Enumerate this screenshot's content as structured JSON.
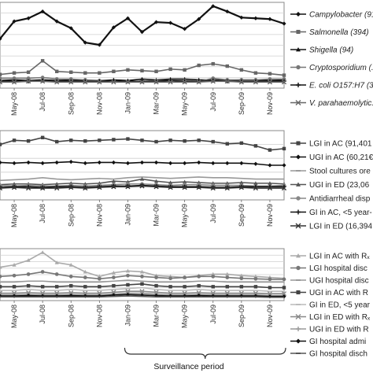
{
  "chart_data": [
    {
      "type": "line",
      "x": [
        "Apr-08",
        "May-08",
        "Jun-08",
        "Jul-08",
        "Aug-08",
        "Sep-08",
        "Oct-08",
        "Nov-08",
        "Dec-08",
        "Jan-09",
        "Feb-09",
        "Mar-09",
        "Apr-09",
        "May-09",
        "Jun-09",
        "Jul-09",
        "Aug-09",
        "Sep-09",
        "Oct-09",
        "Nov-09",
        "Dec-09"
      ],
      "xticks": [
        "May-08",
        "Jul-08",
        "Sep-08",
        "Nov-08",
        "Jan-09",
        "Mar-09",
        "May-09",
        "Jul-09",
        "Sep-09",
        "Nov-09"
      ],
      "series": [
        {
          "name": "Campylobacter (91",
          "marker": "diamond",
          "color": "#111111",
          "values": [
            57,
            80,
            84,
            93,
            80,
            71,
            52,
            49,
            72,
            84,
            66,
            79,
            78,
            70,
            83,
            100,
            93,
            85,
            84,
            83,
            77
          ]
        },
        {
          "name": "Salmonella (394)",
          "marker": "square",
          "color": "#666666",
          "values": [
            10,
            12,
            13,
            28,
            14,
            13,
            12,
            12,
            14,
            16,
            15,
            14,
            17,
            16,
            22,
            24,
            21,
            16,
            12,
            11,
            9
          ]
        },
        {
          "name": "Shigella (94)",
          "marker": "triangle",
          "color": "#111111",
          "values": [
            2,
            3,
            2,
            3,
            2,
            3,
            2,
            2,
            3,
            2,
            4,
            3,
            4,
            4,
            3,
            3,
            2,
            3,
            3,
            2,
            3
          ]
        },
        {
          "name": "Cryptosporidium (...",
          "marker": "circle",
          "color": "#777777",
          "values": [
            5,
            5,
            5,
            6,
            4,
            4,
            3,
            2,
            2,
            1,
            1,
            2,
            2,
            2,
            1,
            5,
            3,
            3,
            3,
            4,
            4
          ]
        },
        {
          "name": "E. coli O157:H7 (35",
          "marker": "plus",
          "color": "#111111",
          "values": [
            1,
            1,
            1,
            2,
            1,
            1,
            1,
            1,
            2,
            1,
            1,
            1,
            2,
            1,
            1,
            2,
            1,
            1,
            1,
            1,
            1
          ]
        },
        {
          "name": "V. parahaemolytic...",
          "marker": "x",
          "color": "#666666",
          "values": [
            0,
            0,
            1,
            1,
            0,
            0,
            0,
            0,
            0,
            0,
            0,
            0,
            0,
            0,
            0,
            1,
            1,
            0,
            0,
            0,
            0
          ]
        }
      ]
    },
    {
      "type": "line",
      "x": [
        "Apr-08",
        "May-08",
        "Jun-08",
        "Jul-08",
        "Aug-08",
        "Sep-08",
        "Oct-08",
        "Nov-08",
        "Dec-08",
        "Jan-09",
        "Feb-09",
        "Mar-09",
        "Apr-09",
        "May-09",
        "Jun-09",
        "Jul-09",
        "Aug-09",
        "Sep-09",
        "Oct-09",
        "Nov-09",
        "Dec-09"
      ],
      "xticks": [
        "May-08",
        "Jul-08",
        "Sep-08",
        "Nov-08",
        "Jan-09",
        "Mar-09",
        "May-09",
        "Jul-09",
        "Sep-09",
        "Nov-09"
      ],
      "series": [
        {
          "name": "LGI in AC (91,401",
          "marker": "square",
          "color": "#444444",
          "values": [
            4000,
            4300,
            4250,
            4500,
            4200,
            4300,
            4250,
            4300,
            4350,
            4400,
            4300,
            4200,
            4300,
            4250,
            4300,
            4200,
            4050,
            4100,
            3900,
            3600,
            3700
          ]
        },
        {
          "name": "UGI in AC (60,21€",
          "marker": "diamond",
          "color": "#111111",
          "values": [
            2700,
            2650,
            2700,
            2650,
            2700,
            2750,
            2650,
            2700,
            2700,
            2650,
            2700,
            2700,
            2650,
            2650,
            2700,
            2650,
            2650,
            2650,
            2600,
            2500,
            2500
          ]
        },
        {
          "name": "Stool cultures ore",
          "marker": "none",
          "color": "#999999",
          "values": [
            1400,
            1450,
            1500,
            1600,
            1500,
            1450,
            1500,
            1550,
            1500,
            1600,
            1650,
            1600,
            1550,
            1600,
            1650,
            1600,
            1600,
            1550,
            1500,
            1500,
            1500
          ]
        },
        {
          "name": "UGI in ED (23,06",
          "marker": "triangle",
          "color": "#555555",
          "values": [
            1100,
            1150,
            1150,
            1100,
            1150,
            1200,
            1150,
            1200,
            1350,
            1300,
            1500,
            1350,
            1250,
            1300,
            1250,
            1200,
            1200,
            1250,
            1200,
            1200,
            1150
          ]
        },
        {
          "name": "Antidiarrheal disp",
          "marker": "circle",
          "color": "#888888",
          "values": [
            1050,
            1000,
            1050,
            1000,
            1000,
            1050,
            1000,
            1050,
            1100,
            1150,
            1150,
            1100,
            1050,
            1100,
            1100,
            1050,
            1050,
            1050,
            1000,
            1000,
            1050
          ]
        },
        {
          "name": "GI in AC, <5 year-",
          "marker": "plus",
          "color": "#111111",
          "values": [
            900,
            950,
            950,
            900,
            950,
            950,
            900,
            950,
            1000,
            1000,
            1050,
            1000,
            950,
            950,
            950,
            900,
            900,
            950,
            950,
            950,
            950
          ]
        },
        {
          "name": "LGI in ED (16,394",
          "marker": "x",
          "color": "#333333",
          "values": [
            850,
            900,
            850,
            850,
            850,
            900,
            850,
            900,
            950,
            950,
            1000,
            950,
            900,
            900,
            900,
            850,
            850,
            900,
            850,
            850,
            850
          ]
        }
      ]
    },
    {
      "type": "line",
      "x": [
        "Apr-08",
        "May-08",
        "Jun-08",
        "Jul-08",
        "Aug-08",
        "Sep-08",
        "Oct-08",
        "Nov-08",
        "Dec-08",
        "Jan-09",
        "Feb-09",
        "Mar-09",
        "Apr-09",
        "May-09",
        "Jun-09",
        "Jul-09",
        "Aug-09",
        "Sep-09",
        "Oct-09",
        "Nov-09",
        "Dec-09"
      ],
      "xticks": [
        "May-08",
        "Jul-08",
        "Sep-08",
        "Nov-08",
        "Jan-09",
        "Mar-09",
        "May-09",
        "Jul-09",
        "Sep-09",
        "Nov-09"
      ],
      "series": [
        {
          "name": "LGI in AC with Rₓ",
          "marker": "triangle",
          "color": "#aaaaaa",
          "values": [
            160,
            165,
            175,
            192,
            170,
            165,
            150,
            140,
            148,
            152,
            150,
            142,
            140,
            138,
            142,
            145,
            145,
            142,
            140,
            138,
            136
          ]
        },
        {
          "name": "LGI hospital disc",
          "marker": "circle",
          "color": "#777777",
          "values": [
            140,
            142,
            145,
            150,
            145,
            140,
            138,
            135,
            138,
            142,
            140,
            138,
            136,
            138,
            140,
            140,
            138,
            136,
            135,
            134,
            134
          ]
        },
        {
          "name": "UGI hospital disc",
          "marker": "none",
          "color": "#999999",
          "values": [
            128,
            128,
            130,
            130,
            128,
            128,
            128,
            128,
            130,
            132,
            130,
            128,
            128,
            128,
            130,
            130,
            128,
            128,
            128,
            128,
            128
          ]
        },
        {
          "name": "UGI in AC with R",
          "marker": "square",
          "color": "#444444",
          "values": [
            118,
            118,
            120,
            118,
            118,
            120,
            118,
            118,
            120,
            122,
            124,
            120,
            118,
            118,
            120,
            118,
            118,
            118,
            118,
            116,
            116
          ]
        },
        {
          "name": "GI in ED, <5 year",
          "marker": "none",
          "color": "#bbbbbb",
          "values": [
            110,
            110,
            112,
            110,
            110,
            112,
            110,
            110,
            112,
            114,
            116,
            112,
            110,
            110,
            112,
            110,
            110,
            110,
            110,
            108,
            108
          ]
        },
        {
          "name": "LGI in ED with Rₓ",
          "marker": "x",
          "color": "#888888",
          "values": [
            104,
            104,
            105,
            104,
            104,
            105,
            104,
            104,
            106,
            108,
            108,
            106,
            104,
            104,
            105,
            104,
            104,
            104,
            104,
            103,
            103
          ]
        },
        {
          "name": "UGI in ED with R",
          "marker": "plus",
          "color": "#999999",
          "values": [
            100,
            100,
            101,
            100,
            100,
            101,
            100,
            100,
            102,
            104,
            104,
            102,
            100,
            100,
            101,
            100,
            100,
            100,
            100,
            99,
            99
          ]
        },
        {
          "name": "GI hospital admi",
          "marker": "diamond",
          "color": "#111111",
          "values": [
            98,
            98,
            99,
            98,
            98,
            99,
            98,
            98,
            100,
            101,
            100,
            99,
            98,
            98,
            99,
            98,
            98,
            98,
            98,
            97,
            97
          ]
        },
        {
          "name": "GI hospital disch",
          "marker": "none",
          "color": "#555555",
          "values": [
            96,
            96,
            96,
            96,
            96,
            96,
            96,
            96,
            97,
            98,
            97,
            96,
            96,
            96,
            96,
            96,
            96,
            96,
            96,
            95,
            95
          ]
        }
      ],
      "annotation": "Surveillance period"
    }
  ]
}
